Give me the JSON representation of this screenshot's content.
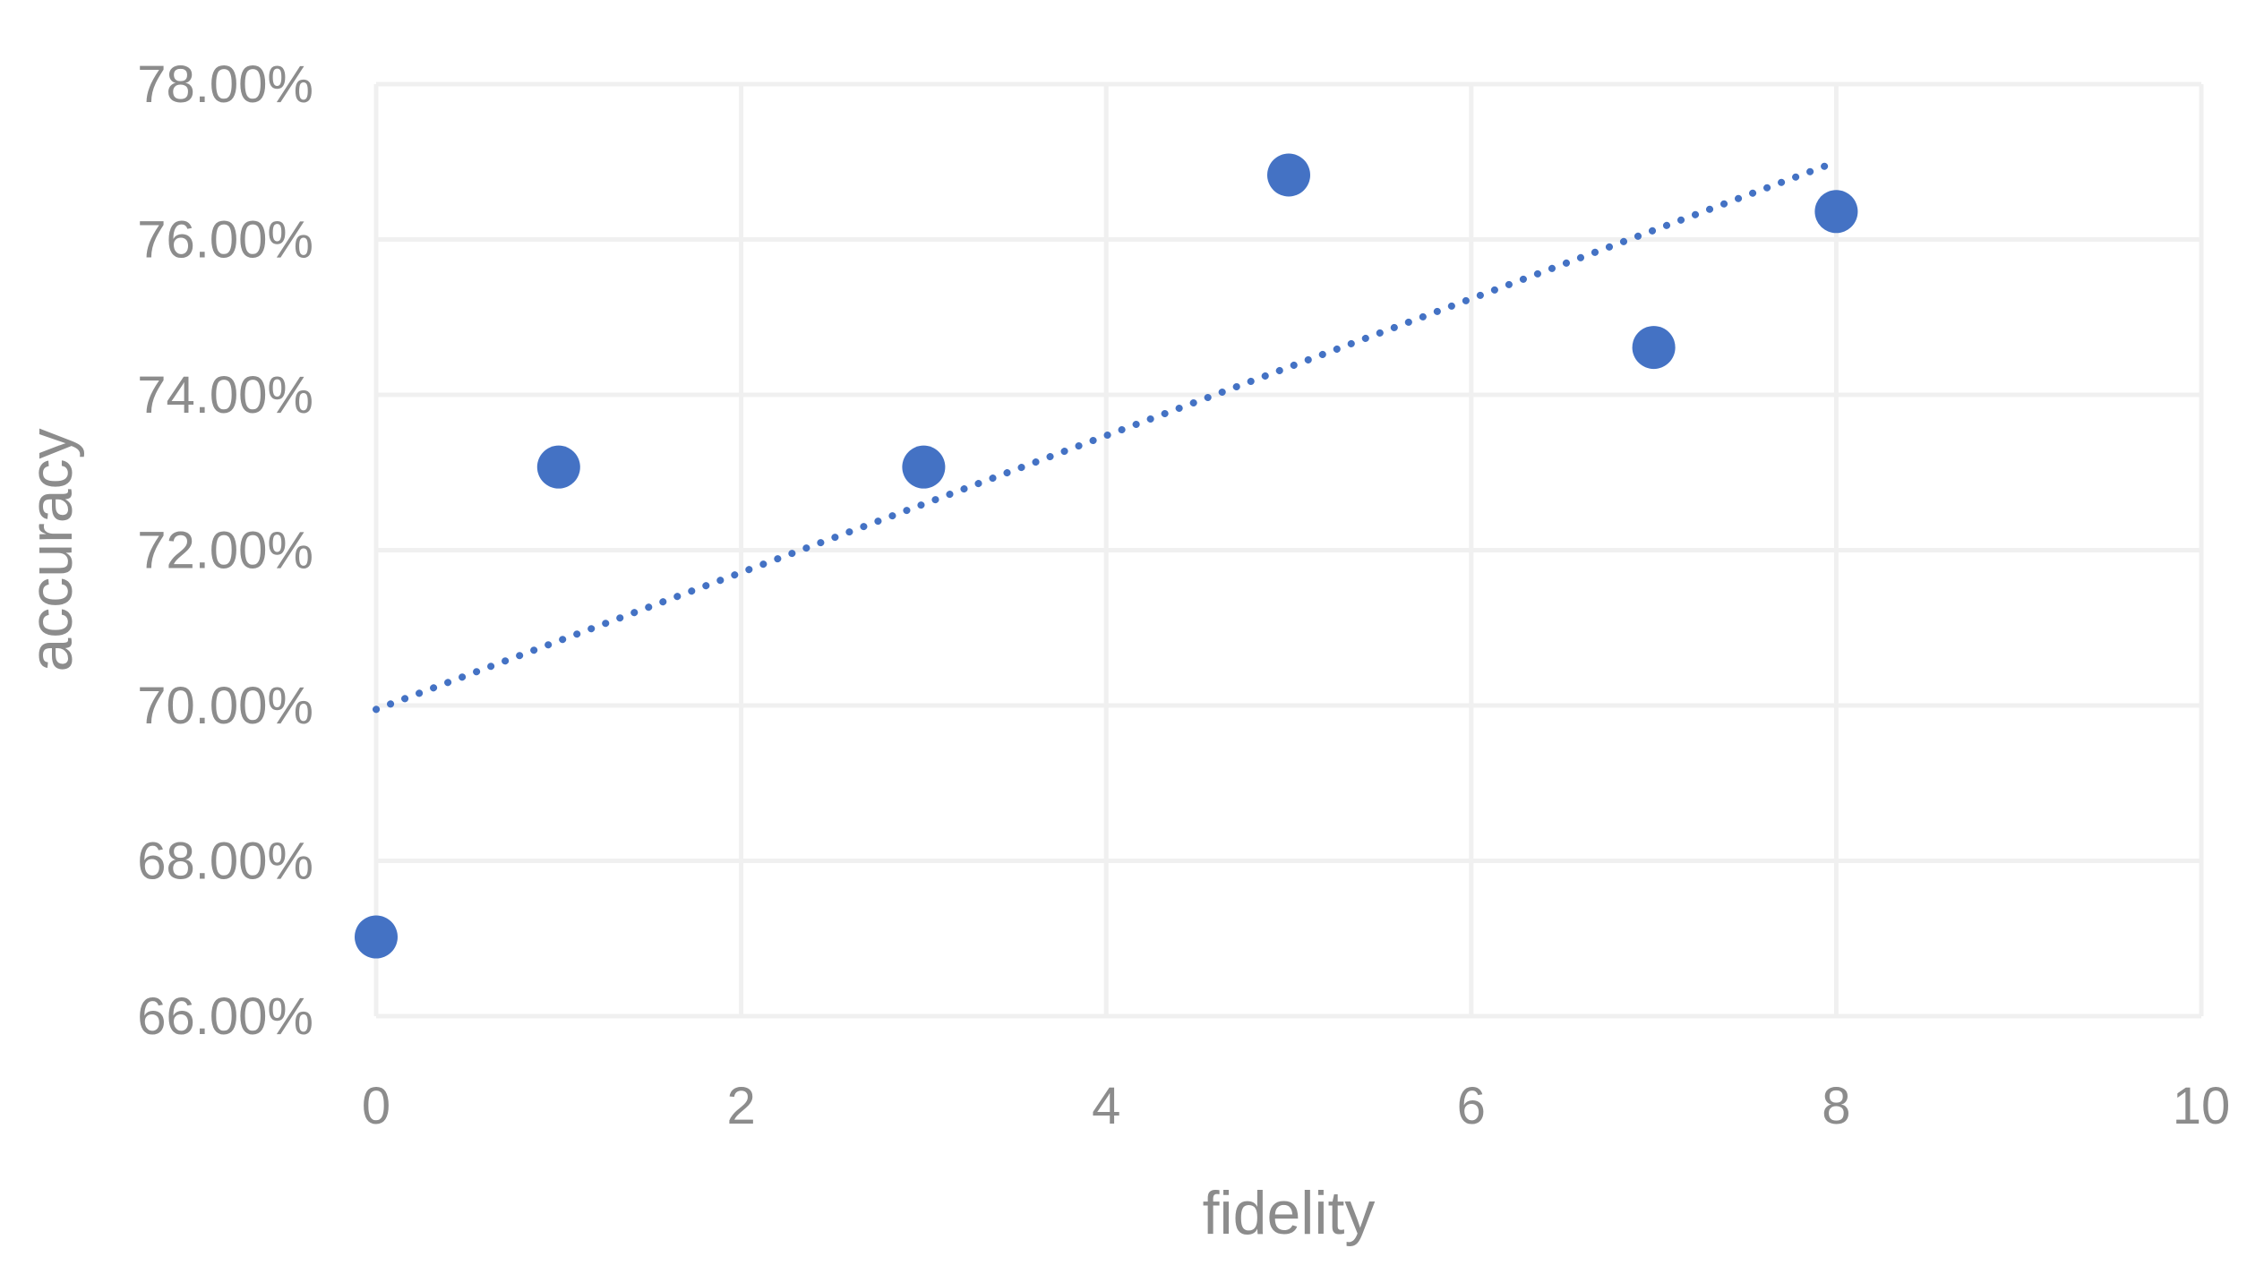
{
  "chart_data": {
    "type": "scatter",
    "title": "",
    "xlabel": "fidelity",
    "ylabel": "accuracy",
    "xlim": [
      0,
      10
    ],
    "ylim": [
      0.66,
      0.78
    ],
    "x_ticks": [
      0,
      2,
      4,
      6,
      8,
      10
    ],
    "x_tick_labels": [
      "0",
      "2",
      "4",
      "6",
      "8",
      "10"
    ],
    "y_ticks": [
      0.66,
      0.68,
      0.7,
      0.72,
      0.74,
      0.76,
      0.78
    ],
    "y_tick_labels": [
      "66.00%",
      "68.00%",
      "70.00%",
      "72.00%",
      "74.00%",
      "76.00%",
      "78.00%"
    ],
    "grid": true,
    "legend": "none",
    "series": [
      {
        "points": [
          {
            "x": 0,
            "y": 0.6702
          },
          {
            "x": 1,
            "y": 0.7307
          },
          {
            "x": 3,
            "y": 0.7307
          },
          {
            "x": 5,
            "y": 0.7683
          },
          {
            "x": 7,
            "y": 0.7461
          },
          {
            "x": 8,
            "y": 0.7636
          }
        ],
        "color": "#4472C4"
      }
    ],
    "trendline": {
      "type": "linear",
      "style": "dotted",
      "color": "#4472C4",
      "x_start": 0,
      "y_start": 0.6995,
      "x_end": 8,
      "y_end": 0.77
    },
    "colors": {
      "gridline": "#F0F0F0",
      "tick_text": "#8C8C8C",
      "axis_title": "#8C8C8C",
      "plot_border": "#F0F0F0"
    }
  }
}
